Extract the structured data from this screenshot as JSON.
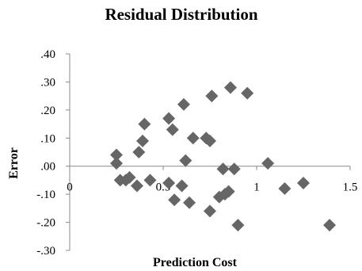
{
  "chart_data": {
    "type": "scatter",
    "title": "Residual Distribution",
    "xlabel": "Prediction Cost",
    "ylabel": "Error",
    "xlim": [
      0,
      1.5
    ],
    "ylim": [
      -0.3,
      0.4
    ],
    "x_ticks": [
      0,
      0.5,
      1,
      1.5
    ],
    "x_tick_labels": [
      "0",
      "0.5",
      "1",
      "1.5"
    ],
    "y_ticks": [
      0.4,
      0.3,
      0.2,
      0.1,
      0.0,
      -0.1,
      -0.2,
      -0.3
    ],
    "y_tick_labels": [
      ".40",
      ".30",
      ".20",
      ".10",
      ".00",
      "-.10",
      "-.20",
      "-.30"
    ],
    "grid": false,
    "legend": "none",
    "marker": "diamond",
    "marker_color": "#666666",
    "points": [
      {
        "x": 0.25,
        "y": 0.04
      },
      {
        "x": 0.25,
        "y": 0.01
      },
      {
        "x": 0.27,
        "y": -0.05
      },
      {
        "x": 0.3,
        "y": -0.05
      },
      {
        "x": 0.32,
        "y": -0.04
      },
      {
        "x": 0.36,
        "y": -0.07
      },
      {
        "x": 0.37,
        "y": 0.05
      },
      {
        "x": 0.39,
        "y": 0.09
      },
      {
        "x": 0.4,
        "y": 0.15
      },
      {
        "x": 0.43,
        "y": -0.05
      },
      {
        "x": 0.53,
        "y": -0.06
      },
      {
        "x": 0.53,
        "y": 0.17
      },
      {
        "x": 0.55,
        "y": 0.13
      },
      {
        "x": 0.56,
        "y": -0.12
      },
      {
        "x": 0.6,
        "y": -0.07
      },
      {
        "x": 0.61,
        "y": 0.22
      },
      {
        "x": 0.62,
        "y": 0.02
      },
      {
        "x": 0.64,
        "y": -0.13
      },
      {
        "x": 0.66,
        "y": 0.1
      },
      {
        "x": 0.73,
        "y": 0.1
      },
      {
        "x": 0.75,
        "y": 0.09
      },
      {
        "x": 0.75,
        "y": -0.16
      },
      {
        "x": 0.76,
        "y": 0.25
      },
      {
        "x": 0.8,
        "y": -0.11
      },
      {
        "x": 0.82,
        "y": -0.01
      },
      {
        "x": 0.83,
        "y": -0.1
      },
      {
        "x": 0.85,
        "y": -0.09
      },
      {
        "x": 0.86,
        "y": 0.28
      },
      {
        "x": 0.88,
        "y": -0.01
      },
      {
        "x": 0.9,
        "y": -0.21
      },
      {
        "x": 0.95,
        "y": 0.26
      },
      {
        "x": 1.06,
        "y": 0.01
      },
      {
        "x": 1.15,
        "y": -0.08
      },
      {
        "x": 1.25,
        "y": -0.06
      },
      {
        "x": 1.39,
        "y": -0.21
      }
    ]
  }
}
